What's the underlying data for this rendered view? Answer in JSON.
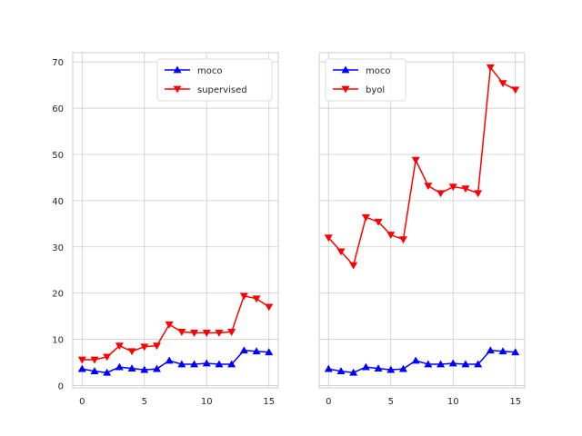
{
  "chart_data": [
    {
      "type": "line",
      "x": [
        0,
        1,
        2,
        3,
        4,
        5,
        6,
        7,
        8,
        9,
        10,
        11,
        12,
        13,
        14,
        15
      ],
      "xlim": [
        -0.75,
        15.75
      ],
      "ylim": [
        -0.5,
        72
      ],
      "xticks": [
        0,
        5,
        10,
        15
      ],
      "yticks": [
        0,
        10,
        20,
        30,
        40,
        50,
        60,
        70
      ],
      "grid": true,
      "legend_loc": "upper right",
      "series": [
        {
          "name": "moco",
          "color": "#0000ff",
          "marker": "triangle-up",
          "values": [
            3.6,
            3.1,
            2.8,
            4.0,
            3.7,
            3.4,
            3.6,
            5.4,
            4.6,
            4.6,
            4.8,
            4.6,
            4.6,
            7.6,
            7.4,
            7.2
          ]
        },
        {
          "name": "supervised",
          "color": "#ff0000",
          "marker": "triangle-down",
          "values": [
            5.6,
            5.6,
            6.2,
            8.6,
            7.4,
            8.4,
            8.6,
            13.2,
            11.6,
            11.4,
            11.4,
            11.4,
            11.6,
            19.4,
            18.8,
            17.0
          ]
        }
      ]
    },
    {
      "type": "line",
      "x": [
        0,
        1,
        2,
        3,
        4,
        5,
        6,
        7,
        8,
        9,
        10,
        11,
        12,
        13,
        14,
        15
      ],
      "xlim": [
        -0.75,
        15.75
      ],
      "ylim": [
        -0.5,
        72
      ],
      "xticks": [
        0,
        5,
        10,
        15
      ],
      "yticks": [
        0,
        10,
        20,
        30,
        40,
        50,
        60,
        70
      ],
      "show_yticklabels": false,
      "grid": true,
      "legend_loc": "upper left",
      "series": [
        {
          "name": "moco",
          "color": "#0000ff",
          "marker": "triangle-up",
          "values": [
            3.6,
            3.1,
            2.8,
            4.0,
            3.7,
            3.4,
            3.6,
            5.4,
            4.6,
            4.6,
            4.8,
            4.6,
            4.6,
            7.6,
            7.4,
            7.2
          ]
        },
        {
          "name": "byol",
          "color": "#ff0000",
          "marker": "triangle-down",
          "values": [
            32.0,
            29.0,
            26.0,
            36.4,
            35.4,
            32.6,
            31.6,
            48.8,
            43.2,
            41.6,
            43.0,
            42.6,
            41.6,
            68.8,
            65.4,
            64.0
          ]
        }
      ]
    }
  ]
}
